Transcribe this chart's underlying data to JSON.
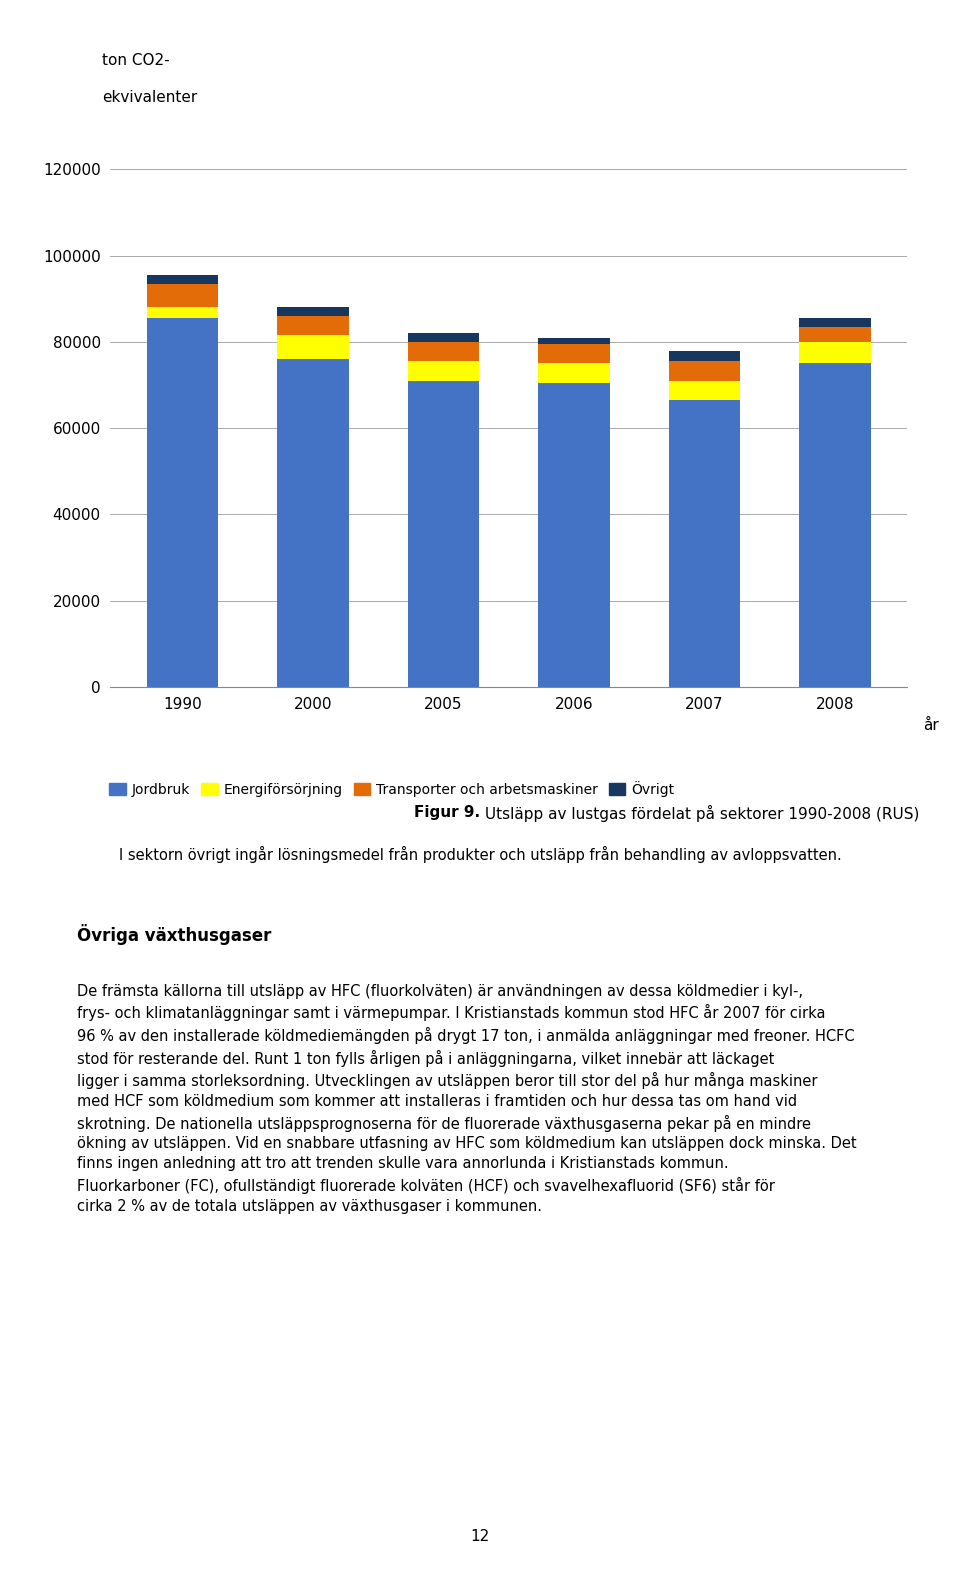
{
  "years": [
    "1990",
    "2000",
    "2005",
    "2006",
    "2007",
    "2008"
  ],
  "jordbruk": [
    85500,
    76000,
    71000,
    70500,
    66500,
    75000
  ],
  "energi": [
    2500,
    5500,
    4500,
    4500,
    4500,
    5000
  ],
  "transport": [
    5500,
    4500,
    4500,
    4500,
    4500,
    3500
  ],
  "ovrigt": [
    2000,
    2000,
    2000,
    1500,
    2500,
    2000
  ],
  "colors": {
    "jordbruk": "#4472C4",
    "energi": "#FFFF00",
    "transport": "#E36C09",
    "ovrigt": "#17375E"
  },
  "ylabel_line1": "ton CO2-",
  "ylabel_line2": "ekvivalenter",
  "xlabel": "år",
  "ylim": [
    0,
    130000
  ],
  "yticks": [
    0,
    20000,
    40000,
    60000,
    80000,
    100000,
    120000
  ],
  "legend_labels": [
    "Jordbruk",
    "Energiförsörjning",
    "Transporter och arbetsmaskiner",
    "Övrigt"
  ],
  "figure_caption_bold": "Figur 9.",
  "figure_caption_normal": " Utsläpp av lustgas fördelat på sektorer 1990-2008 (RUS)",
  "figure_subcaption": "I sektorn övrigt ingår lösningsmedel från produkter och utsläpp från behandling av avloppsvatten.",
  "section_heading": "Övriga växthusgaser",
  "body_text": "De främsta källorna till utsläpp av HFC (fluorkolväten) är användningen av dessa köldmedier i kyl-, frys- och klimatanläggningar samt i värmepumpar. I Kristianstads kommun stod HFC år 2007 för cirka 96 % av den installerade köldmediemängden på drygt 17 ton, i anmälda anläggningar med freoner. HCFC stod för resterande del. Runt 1 ton fylls årligen på i anläggningarna, vilket innebär att läckaget ligger i samma storleksordning. Utvecklingen av utsläppen beror till stor del på hur många maskiner med HCF som köldmedium som kommer att installeras i framtiden och hur dessa tas om hand vid skrotning. De nationella utsläppsprognoserna för de fluorerade växthusgaserna pekar på en mindre ökning av utsläppen. Vid en snabbare utfasning av HFC som köldmedium kan utsläppen dock minska. Det finns ingen anledning att tro att trenden skulle vara annorlunda i Kristianstads kommun. Fluorkarboner (FC), ofullständigt fluorerade kolväten (HCF) och svavelhexafluorid (SF6) står för cirka 2 % av de totala utsläppen av växthusgaser i kommunen.",
  "page_number": "12",
  "bg_color": "#ffffff",
  "text_color": "#000000",
  "font_size_body": 10.5,
  "font_size_label": 11,
  "font_size_heading": 12
}
